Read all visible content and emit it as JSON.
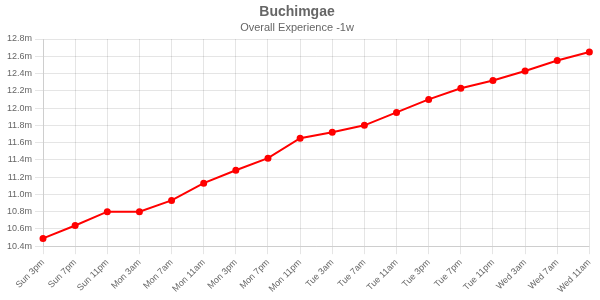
{
  "chart_data": {
    "type": "line",
    "title": "Buchimgae",
    "subtitle": "Overall Experience -1w",
    "categories": [
      "Sun 3pm",
      "Sun 7pm",
      "Sun 11pm",
      "Mon 3am",
      "Mon 7am",
      "Mon 11am",
      "Mon 3pm",
      "Mon 7pm",
      "Mon 11pm",
      "Tue 3am",
      "Tue 7am",
      "Tue 11am",
      "Tue 3pm",
      "Tue 7pm",
      "Tue 11pm",
      "Wed 3am",
      "Wed 7am",
      "Wed 11am"
    ],
    "values": [
      10.49,
      10.64,
      10.8,
      10.8,
      10.93,
      11.13,
      11.28,
      11.42,
      11.65,
      11.72,
      11.8,
      11.95,
      12.1,
      12.23,
      12.32,
      12.43,
      12.55,
      12.65
    ],
    "color": "#ff0000",
    "marker": "circle",
    "ylim": [
      10.4,
      12.8
    ],
    "yticks": [
      {
        "value": 10.4,
        "label": "10.4m"
      },
      {
        "value": 10.6,
        "label": "10.6m"
      },
      {
        "value": 10.8,
        "label": "10.8m"
      },
      {
        "value": 11.0,
        "label": "11.0m"
      },
      {
        "value": 11.2,
        "label": "11.2m"
      },
      {
        "value": 11.4,
        "label": "11.4m"
      },
      {
        "value": 11.6,
        "label": "11.6m"
      },
      {
        "value": 11.8,
        "label": "11.8m"
      },
      {
        "value": 12.0,
        "label": "12.0m"
      },
      {
        "value": 12.2,
        "label": "12.2m"
      },
      {
        "value": 12.4,
        "label": "12.4m"
      },
      {
        "value": 12.6,
        "label": "12.6m"
      },
      {
        "value": 12.8,
        "label": "12.8m"
      }
    ],
    "grid": true
  }
}
